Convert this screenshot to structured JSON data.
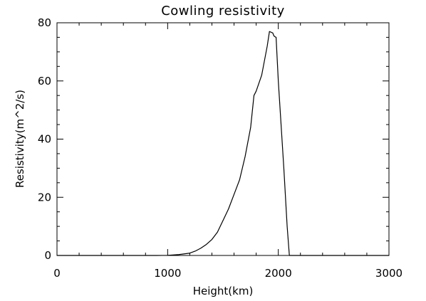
{
  "chart_data": {
    "type": "line",
    "title": "Cowling resistivity",
    "xlabel": "Height(km)",
    "ylabel": "Resistivity(m^2/s)",
    "xlim": [
      0,
      3000
    ],
    "ylim": [
      0,
      80
    ],
    "xticks": [
      "0",
      "1000",
      "2000",
      "3000"
    ],
    "yticks": [
      "0",
      "20",
      "40",
      "60",
      "80"
    ],
    "grid": false,
    "line_color": "#000000",
    "x": [
      0,
      500,
      900,
      1000,
      1100,
      1200,
      1250,
      1300,
      1350,
      1400,
      1450,
      1500,
      1550,
      1600,
      1650,
      1700,
      1750,
      1780,
      1800,
      1850,
      1900,
      1920,
      1950,
      1960,
      1970,
      1980,
      2000,
      2050,
      2080,
      2100,
      3000
    ],
    "y": [
      0,
      0,
      0,
      0.05,
      0.3,
      0.8,
      1.5,
      2.5,
      3.8,
      5.5,
      8,
      12,
      16,
      21,
      26,
      34,
      44,
      55,
      56.5,
      62,
      72,
      77,
      76.5,
      75.5,
      75.2,
      75,
      60,
      30,
      10,
      0,
      0
    ]
  }
}
